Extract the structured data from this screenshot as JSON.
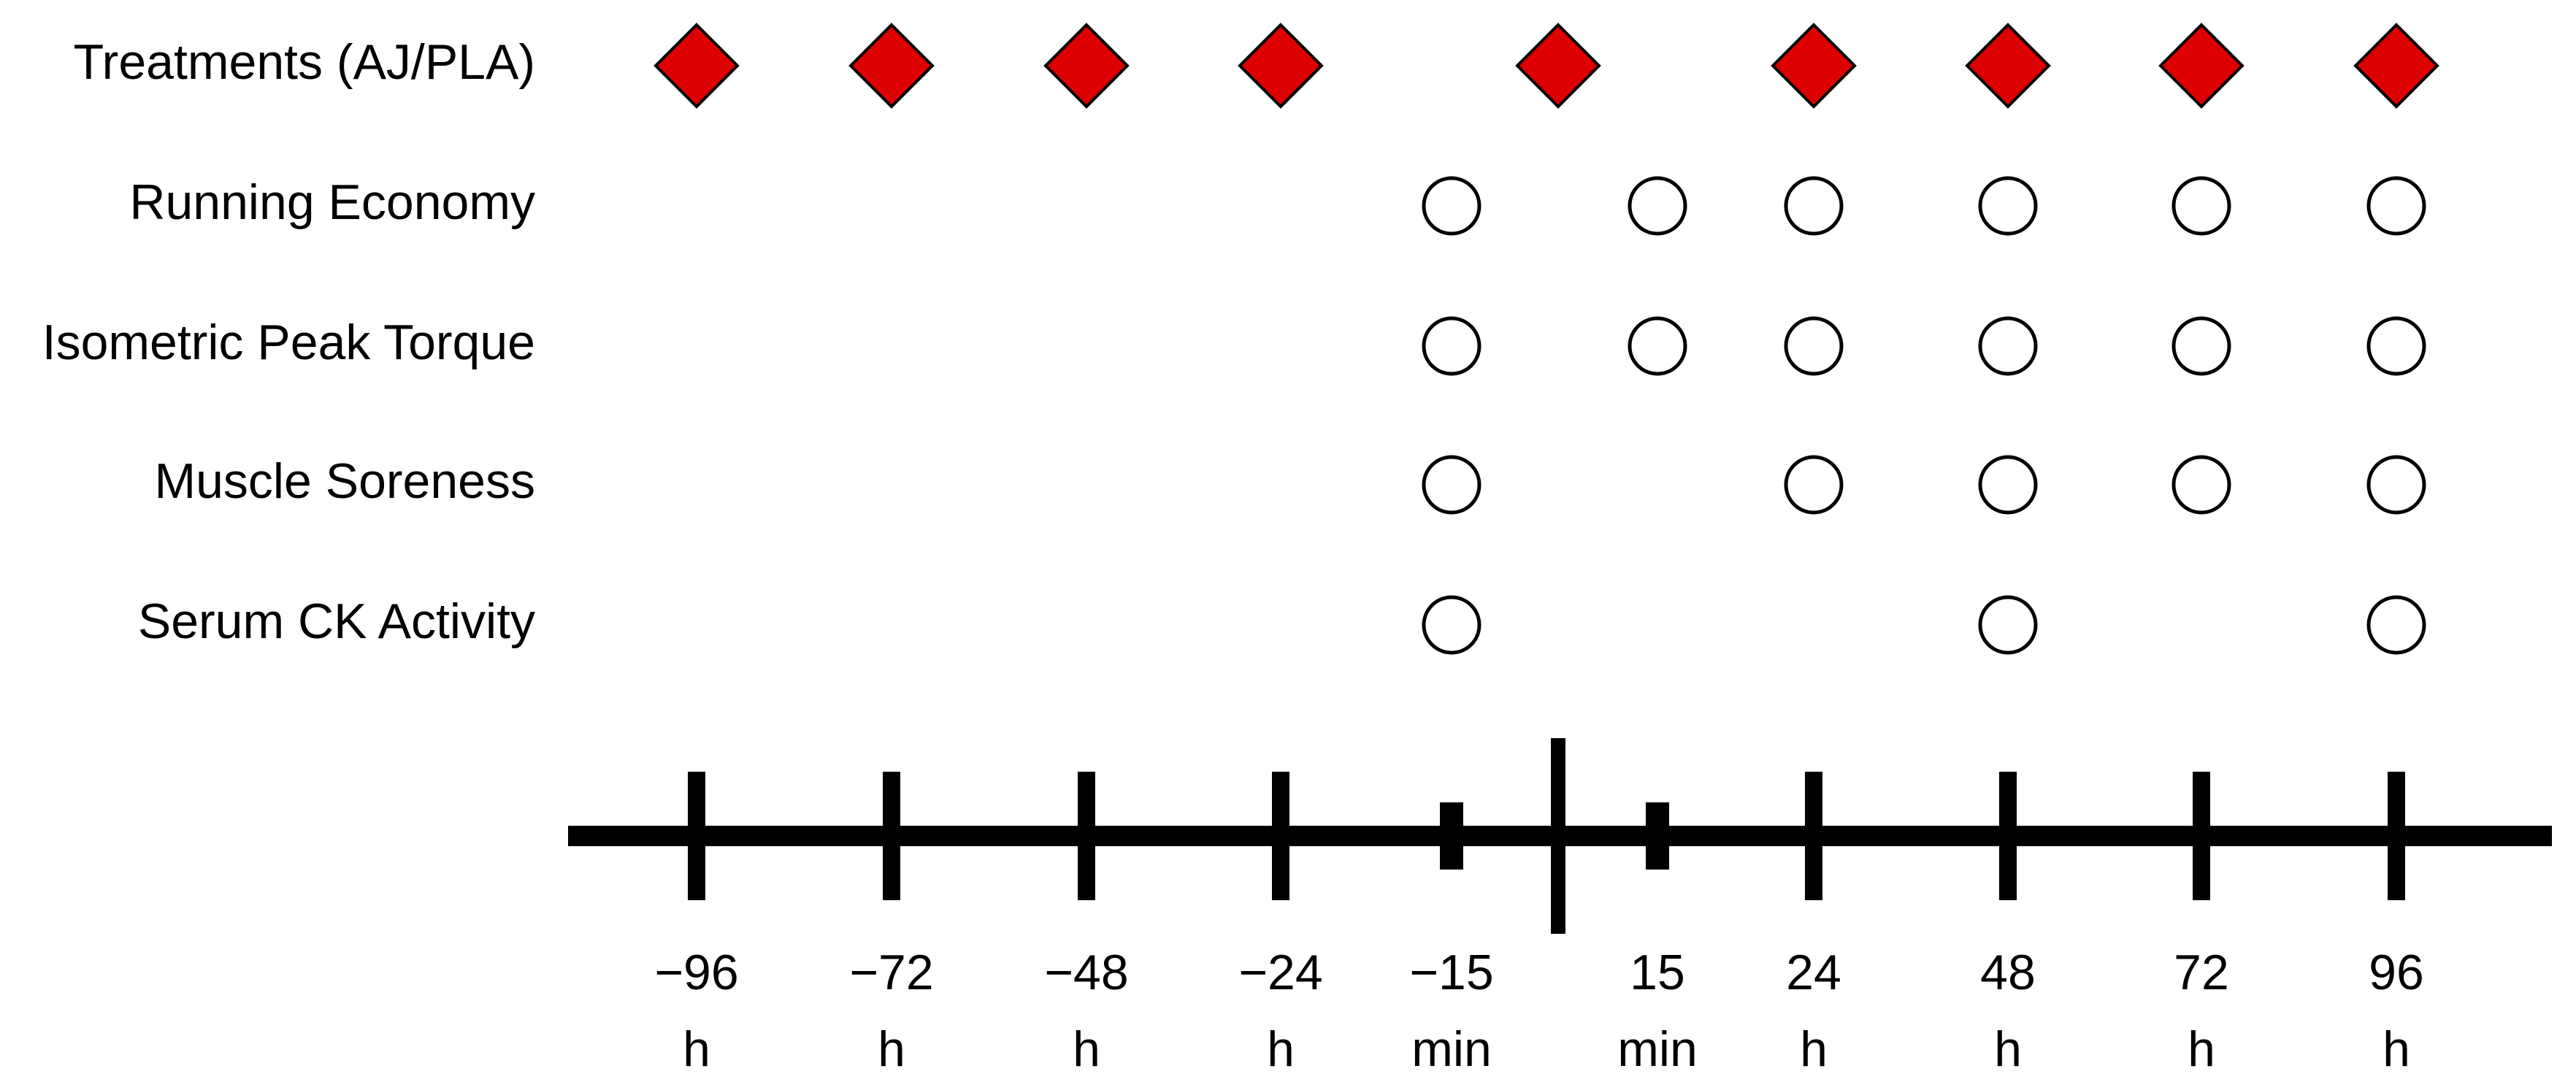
{
  "colors": {
    "treatment_marker": "#dd0000",
    "marker_outline": "#000000",
    "timeline": "#000000",
    "background": "#ffffff"
  },
  "rows": [
    {
      "id": "treatments",
      "label": "Treatments (AJ/PLA)",
      "marker": "diamond",
      "timepoints": [
        "t-96h",
        "t-72h",
        "t-48h",
        "t-24h",
        "t0",
        "t24h",
        "t48h",
        "t72h",
        "t96h"
      ]
    },
    {
      "id": "running-economy",
      "label": "Running Economy",
      "marker": "circle",
      "timepoints": [
        "t-15min",
        "t15min",
        "t24h",
        "t48h",
        "t72h",
        "t96h"
      ]
    },
    {
      "id": "isometric-peak-torque",
      "label": "Isometric Peak Torque",
      "marker": "circle",
      "timepoints": [
        "t-15min",
        "t15min",
        "t24h",
        "t48h",
        "t72h",
        "t96h"
      ]
    },
    {
      "id": "muscle-soreness",
      "label": "Muscle Soreness",
      "marker": "circle",
      "timepoints": [
        "t-15min",
        "t24h",
        "t48h",
        "t72h",
        "t96h"
      ]
    },
    {
      "id": "serum-ck-activity",
      "label": "Serum CK Activity",
      "marker": "circle",
      "timepoints": [
        "t-15min",
        "t48h",
        "t96h"
      ]
    }
  ],
  "timeline": {
    "ticks": [
      {
        "id": "t-96h",
        "value": "−96",
        "unit": "h",
        "kind": "major"
      },
      {
        "id": "t-72h",
        "value": "−72",
        "unit": "h",
        "kind": "major"
      },
      {
        "id": "t-48h",
        "value": "−48",
        "unit": "h",
        "kind": "major"
      },
      {
        "id": "t-24h",
        "value": "−24",
        "unit": "h",
        "kind": "major"
      },
      {
        "id": "t-15min",
        "value": "−15",
        "unit": "min",
        "kind": "minor"
      },
      {
        "id": "t0",
        "value": "",
        "unit": "",
        "kind": "event"
      },
      {
        "id": "t15min",
        "value": "15",
        "unit": "min",
        "kind": "minor"
      },
      {
        "id": "t24h",
        "value": "24",
        "unit": "h",
        "kind": "major"
      },
      {
        "id": "t48h",
        "value": "48",
        "unit": "h",
        "kind": "major"
      },
      {
        "id": "t72h",
        "value": "72",
        "unit": "h",
        "kind": "major"
      },
      {
        "id": "t96h",
        "value": "96",
        "unit": "h",
        "kind": "major"
      }
    ]
  }
}
